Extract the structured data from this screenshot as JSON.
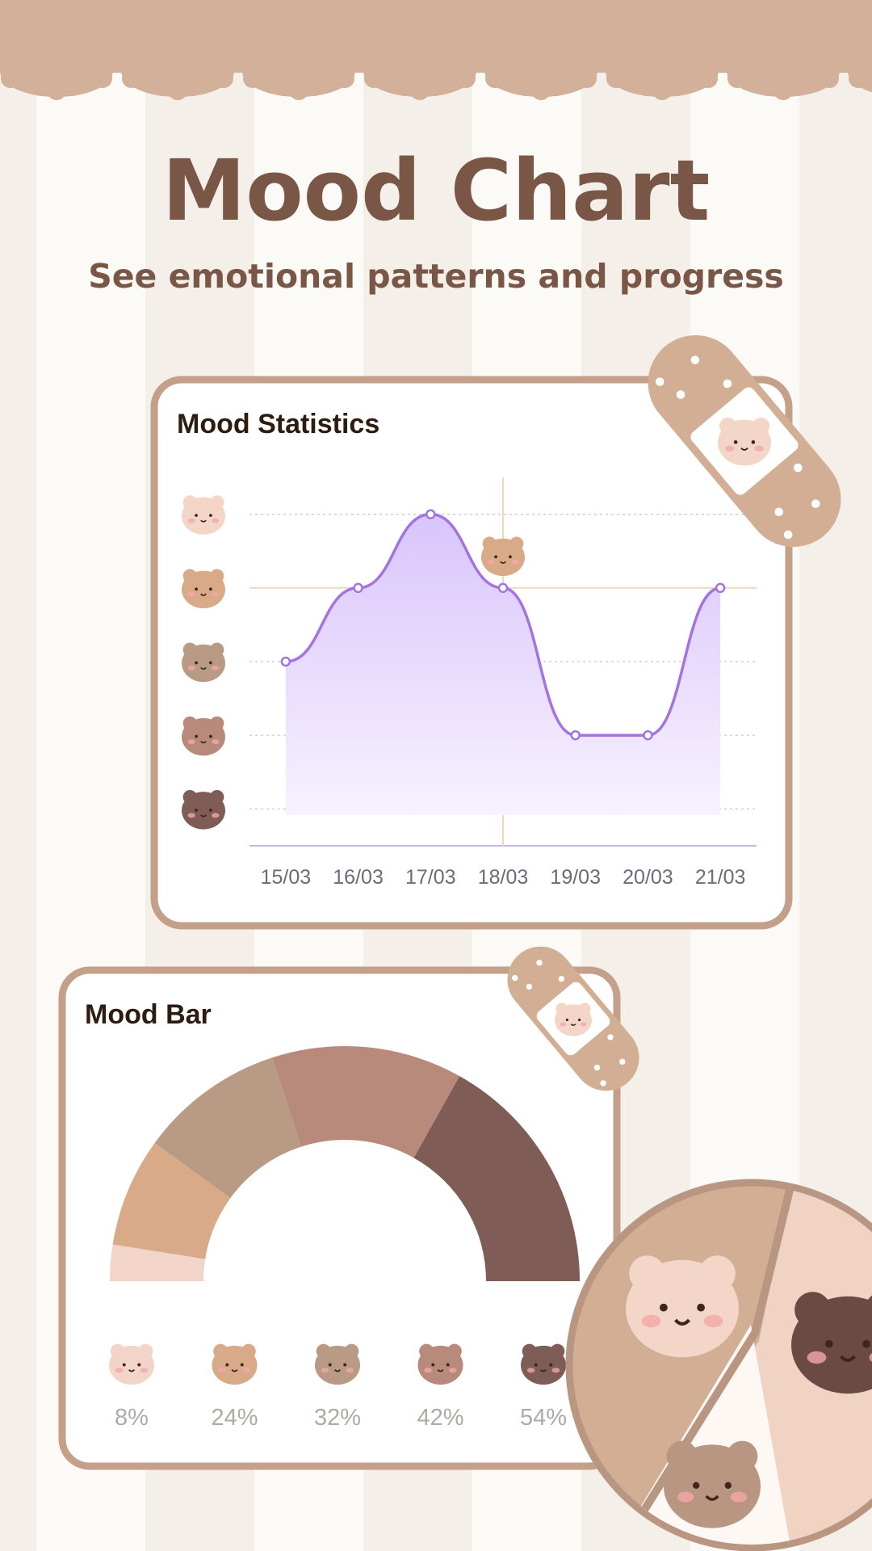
{
  "header": {
    "title": "Mood Chart",
    "subtitle": "See emotional patterns and progress"
  },
  "chart_data": [
    {
      "type": "line",
      "title": "Mood Statistics",
      "categories": [
        "15/03",
        "16/03",
        "17/03",
        "18/03",
        "19/03",
        "20/03",
        "21/03"
      ],
      "values": [
        3,
        4,
        5,
        4,
        2,
        2,
        4
      ],
      "color": "#a374e0",
      "ylim": [
        0.5,
        5.5
      ],
      "yticks": [
        1,
        2,
        3,
        4,
        5
      ],
      "ytick_colors": [
        "#7f5c55",
        "#b88a7c",
        "#b99a84",
        "#d8aa88",
        "#f4d6c8"
      ],
      "grid": true,
      "highlight": 3
    },
    {
      "type": "semicircle",
      "title": "Mood Bar",
      "values": [
        8,
        24,
        32,
        42,
        54
      ],
      "value_labels": [
        "8%",
        "24%",
        "32%",
        "42%",
        "54%"
      ],
      "colors": [
        "#f2d5c8",
        "#d8aa88",
        "#b99a84",
        "#b88a7c",
        "#7f5c55"
      ]
    }
  ]
}
